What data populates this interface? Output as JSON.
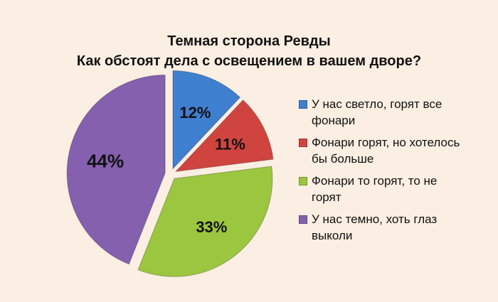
{
  "chart_data": {
    "type": "pie",
    "title": "Темная сторона Ревды",
    "subtitle": "Как обстоят дела с освещением в вашем дворе?",
    "legend_position": "right",
    "slices": [
      {
        "label": "У нас светло, горят все фонари",
        "value": 12,
        "data_label": "12%",
        "color": "#3f7fcf"
      },
      {
        "label": "Фонари горят, но хотелось бы больше",
        "value": 11,
        "data_label": "11%",
        "color": "#d04440"
      },
      {
        "label": "Фонари то горят, то не горят",
        "value": 33,
        "data_label": "33%",
        "color": "#9bc63f"
      },
      {
        "label": "У нас темно, хоть глаз выколи",
        "value": 44,
        "data_label": "44%",
        "color": "#8460ae"
      }
    ]
  }
}
